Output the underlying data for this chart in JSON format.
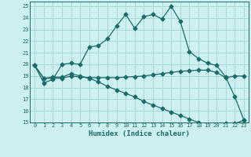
{
  "xlabel": "Humidex (Indice chaleur)",
  "bg_color": "#cff0f0",
  "grid_color": "#a8d8d8",
  "line_color": "#1a6b6b",
  "xlim": [
    -0.5,
    23.5
  ],
  "ylim": [
    15,
    25.4
  ],
  "yticks": [
    15,
    16,
    17,
    18,
    19,
    20,
    21,
    22,
    23,
    24,
    25
  ],
  "xticks": [
    0,
    1,
    2,
    3,
    4,
    5,
    6,
    7,
    8,
    9,
    10,
    11,
    12,
    13,
    14,
    15,
    16,
    17,
    18,
    19,
    20,
    21,
    22,
    23
  ],
  "line1_x": [
    0,
    1,
    2,
    3,
    4,
    5,
    6,
    7,
    8,
    9,
    10,
    11,
    12,
    13,
    14,
    15,
    16,
    17,
    18,
    19,
    20,
    21,
    22,
    23
  ],
  "line1_y": [
    19.9,
    18.4,
    18.7,
    20.0,
    20.1,
    20.0,
    21.5,
    21.6,
    22.2,
    23.3,
    24.3,
    23.1,
    24.1,
    24.3,
    23.9,
    25.0,
    23.7,
    21.1,
    20.5,
    20.1,
    19.9,
    18.9,
    17.2,
    15.2
  ],
  "line2_x": [
    0,
    1,
    2,
    3,
    4,
    5,
    6,
    7,
    8,
    9,
    10,
    11,
    12,
    13,
    14,
    15,
    16,
    17,
    18,
    19,
    20,
    21,
    22,
    23
  ],
  "line2_y": [
    19.9,
    18.8,
    18.8,
    18.8,
    19.0,
    18.9,
    18.85,
    18.85,
    18.85,
    18.85,
    18.9,
    18.95,
    19.0,
    19.1,
    19.2,
    19.3,
    19.4,
    19.45,
    19.5,
    19.5,
    19.3,
    18.85,
    19.0,
    19.0
  ],
  "line3_x": [
    0,
    1,
    2,
    3,
    4,
    5,
    6,
    7,
    8,
    9,
    10,
    11,
    12,
    13,
    14,
    15,
    16,
    17,
    18,
    19,
    20,
    21,
    22,
    23
  ],
  "line3_y": [
    19.9,
    18.8,
    18.9,
    18.9,
    19.2,
    19.0,
    18.8,
    18.5,
    18.1,
    17.8,
    17.5,
    17.2,
    16.8,
    16.5,
    16.2,
    15.9,
    15.6,
    15.3,
    15.0,
    14.8,
    14.6,
    14.9,
    14.9,
    15.2
  ]
}
